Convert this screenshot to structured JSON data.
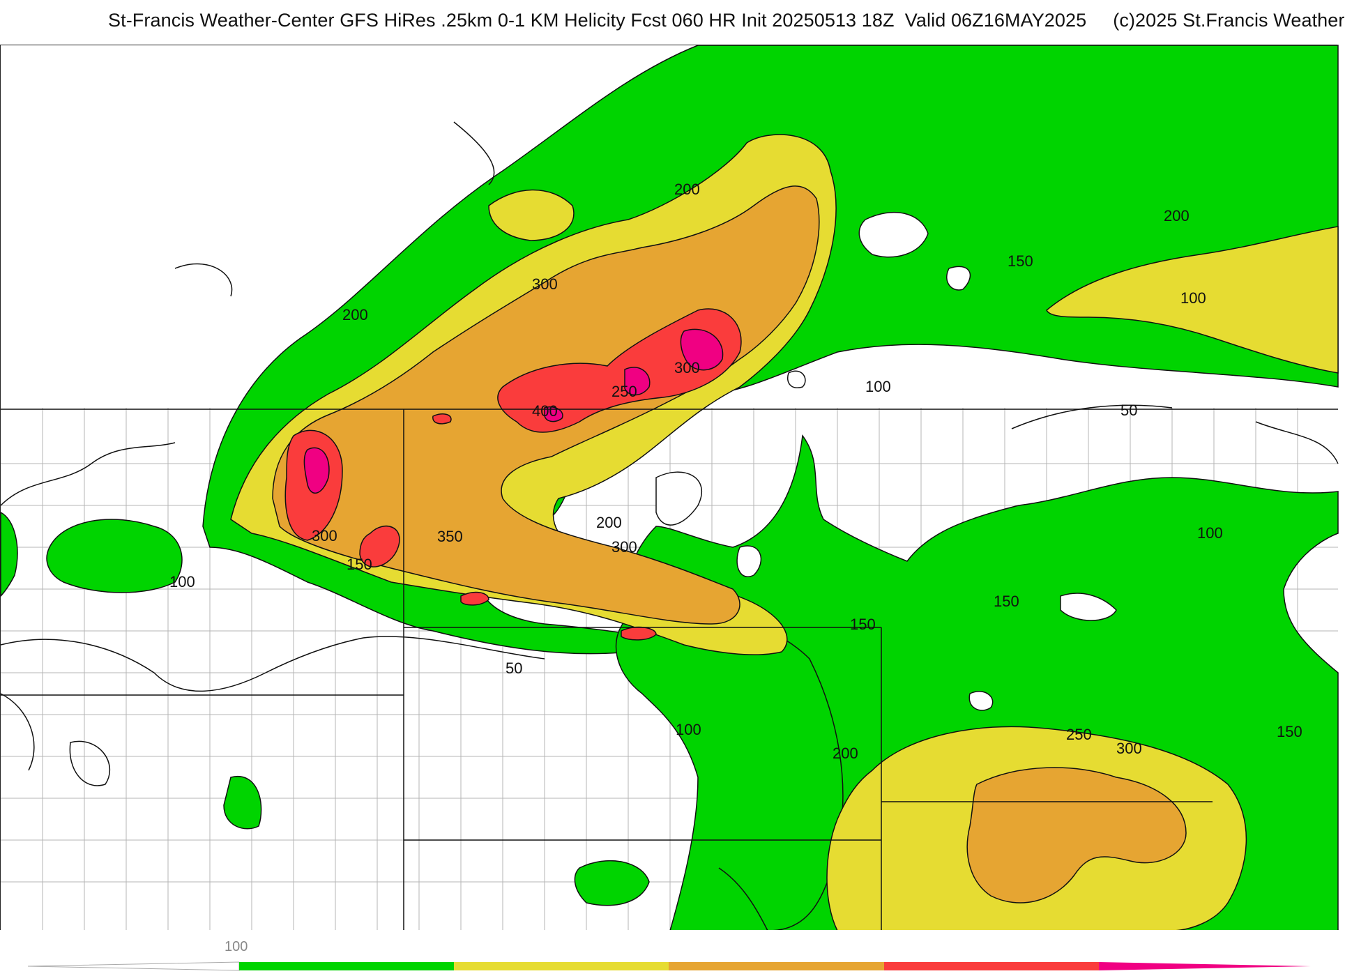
{
  "title": "St-Francis Weather-Center GFS HiRes .25km 0-1 KM Helicity Fcst 060 HR Init 20250513 18Z  Valid 06Z16MAY2025     (c)2025 St.Francis Weather",
  "contour_labels": [
    "200",
    "200",
    "300",
    "200",
    "150",
    "100",
    "400",
    "250",
    "300",
    "100",
    "50",
    "300",
    "350",
    "150",
    "100",
    "200",
    "300",
    "100",
    "150",
    "150",
    "50",
    "100",
    "200",
    "250",
    "300",
    "150"
  ],
  "legend": {
    "tick_label": "100",
    "colors": [
      "#00d400",
      "#e6dc32",
      "#e6a532",
      "#fa3c3c",
      "#f00082"
    ]
  },
  "colors": {
    "white_fill": "#ffffff",
    "green": "#00d400",
    "yellow": "#e6dc32",
    "orange": "#e6a532",
    "red": "#fa3c3c",
    "magenta": "#f00082",
    "contour": "#111111",
    "county_lines": "#b4b4b4"
  }
}
